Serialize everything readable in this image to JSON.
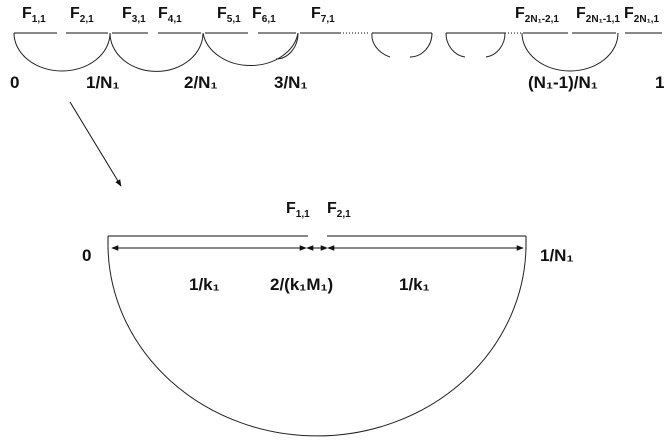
{
  "top_row": {
    "f_labels": [
      {
        "base": "F",
        "sub": "1,1"
      },
      {
        "base": "F",
        "sub": "2,1"
      },
      {
        "base": "F",
        "sub": "3,1"
      },
      {
        "base": "F",
        "sub": "4,1"
      },
      {
        "base": "F",
        "sub": "5,1"
      },
      {
        "base": "F",
        "sub": "6,1"
      },
      {
        "base": "F",
        "sub": "7,1"
      },
      {
        "base": "F",
        "sub": "2N₁-2,1"
      },
      {
        "base": "F",
        "sub": "2N₁-1,1"
      },
      {
        "base": "F",
        "sub": "2N₁,1"
      }
    ],
    "axis_labels": [
      "0",
      "1/N₁",
      "2/N₁",
      "3/N₁",
      "(N₁-1)/N₁",
      "1"
    ]
  },
  "zoom": {
    "f_labels": [
      {
        "base": "F",
        "sub": "1,1"
      },
      {
        "base": "F",
        "sub": "2,1"
      }
    ],
    "left_end": "0",
    "right_end": "1/N₁",
    "segment_labels": [
      "1/k₁",
      "2/(k₁M₁)",
      "1/k₁"
    ]
  }
}
